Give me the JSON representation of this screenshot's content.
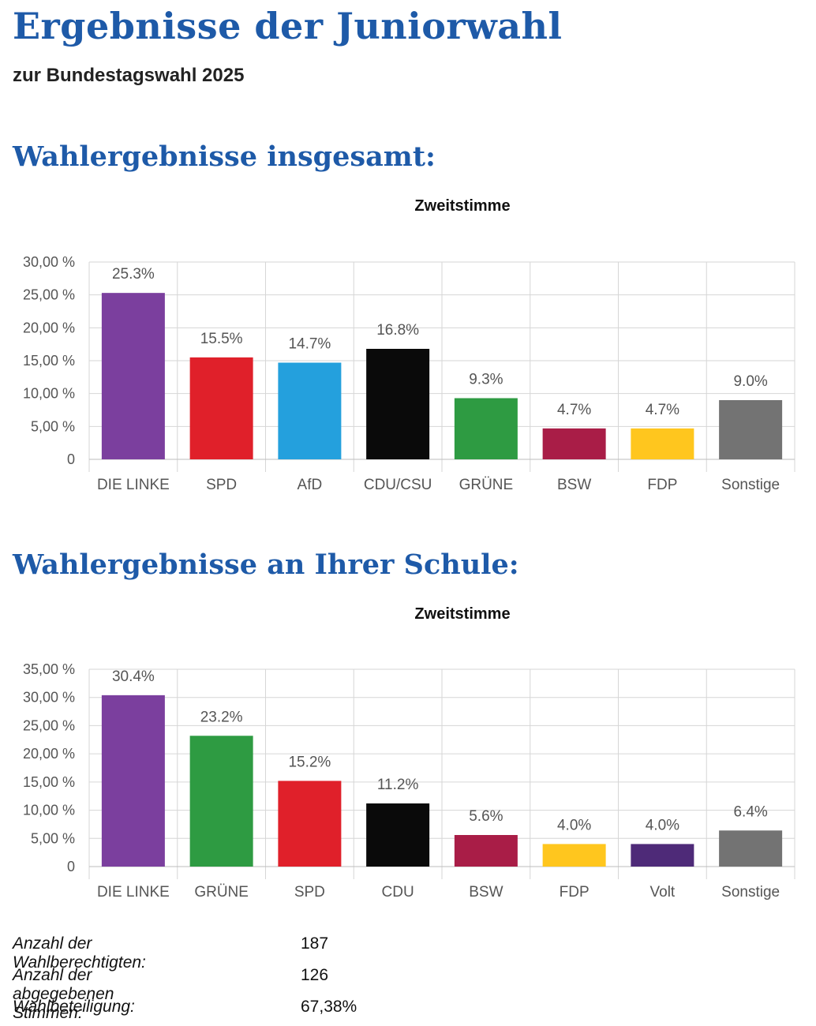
{
  "header": {
    "title": "Ergebnisse der Juniorwahl",
    "subtitle": "zur Bundestagswahl 2025"
  },
  "sections": [
    {
      "heading": "Wahlergebnisse insgesamt:"
    },
    {
      "heading": "Wahlergebnisse an Ihrer Schule:"
    }
  ],
  "chart_data": [
    {
      "type": "bar",
      "title": "Zweitstimme",
      "categories": [
        "DIE LINKE",
        "SPD",
        "AfD",
        "CDU/CSU",
        "GRÜNE",
        "BSW",
        "FDP",
        "Sonstige"
      ],
      "values": [
        25.3,
        15.5,
        14.7,
        16.8,
        9.3,
        4.7,
        4.7,
        9.0
      ],
      "value_labels": [
        "25.3%",
        "15.5%",
        "14.7%",
        "16.8%",
        "9.3%",
        "4.7%",
        "4.7%",
        "9.0%"
      ],
      "colors": [
        "#7b3f9e",
        "#e0202a",
        "#24a0dd",
        "#0a0a0a",
        "#2e9b42",
        "#a91d47",
        "#ffc61e",
        "#737373"
      ],
      "ylim": [
        0,
        30
      ],
      "yticks": [
        0,
        5,
        10,
        15,
        20,
        25,
        30
      ],
      "ytick_labels": [
        "0",
        "5,00 %",
        "10,00 %",
        "15,00 %",
        "20,00 %",
        "25,00 %",
        "30,00 %"
      ],
      "grid": true,
      "xlabel": "",
      "ylabel": ""
    },
    {
      "type": "bar",
      "title": "Zweitstimme",
      "categories": [
        "DIE LINKE",
        "GRÜNE",
        "SPD",
        "CDU",
        "BSW",
        "FDP",
        "Volt",
        "Sonstige"
      ],
      "values": [
        30.4,
        23.2,
        15.2,
        11.2,
        5.6,
        4.0,
        4.0,
        6.4
      ],
      "value_labels": [
        "30.4%",
        "23.2%",
        "15.2%",
        "11.2%",
        "5.6%",
        "4.0%",
        "4.0%",
        "6.4%"
      ],
      "colors": [
        "#7b3f9e",
        "#2e9b42",
        "#e0202a",
        "#0a0a0a",
        "#a91d47",
        "#ffc61e",
        "#4e2a78",
        "#737373"
      ],
      "ylim": [
        0,
        35
      ],
      "yticks": [
        0,
        5,
        10,
        15,
        20,
        25,
        30,
        35
      ],
      "ytick_labels": [
        "0",
        "5,00 %",
        "10,00 %",
        "15,00 %",
        "20,00 %",
        "25,00 %",
        "30,00 %",
        "35,00 %"
      ],
      "grid": true,
      "xlabel": "",
      "ylabel": ""
    }
  ],
  "stats": [
    {
      "label": "Anzahl der Wahlberechtigten:",
      "value": "187"
    },
    {
      "label": "Anzahl der abgegebenen Stimmen:",
      "value": "126"
    },
    {
      "label": "Wahlbeteiligung:",
      "value": "67,38%"
    }
  ]
}
